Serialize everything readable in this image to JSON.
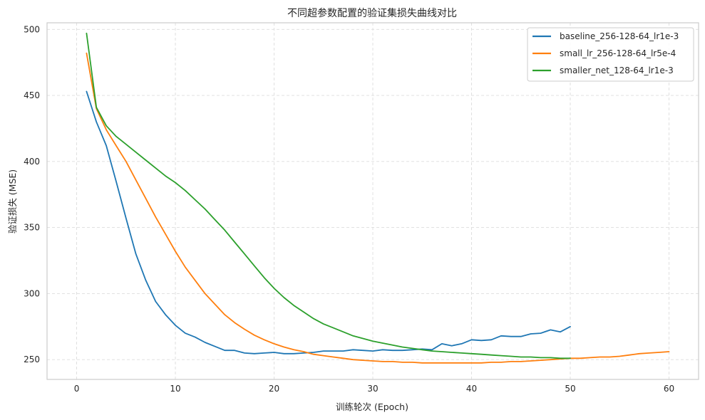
{
  "chart_data": {
    "type": "line",
    "title": "不同超参数配置的验证集损失曲线对比",
    "xlabel": "训练轮次 (Epoch)",
    "ylabel": "验证损失 (MSE)",
    "xlim": [
      -3,
      63
    ],
    "ylim": [
      235,
      505
    ],
    "xticks": [
      0,
      10,
      20,
      30,
      40,
      50,
      60
    ],
    "yticks": [
      250,
      300,
      350,
      400,
      450,
      500
    ],
    "grid": true,
    "grid_style": "dashed",
    "legend_position": "upper right",
    "series": [
      {
        "name": "baseline_256-128-64_lr1e-3",
        "color": "#1f77b4",
        "x_start": 1,
        "values": [
          453,
          430,
          412,
          385,
          357,
          330,
          310,
          294,
          284,
          276,
          270,
          267,
          263,
          260,
          257,
          257,
          255,
          254.5,
          255,
          255.5,
          254.5,
          254.5,
          255,
          255.5,
          256.5,
          256.5,
          256.5,
          257.5,
          257,
          256.5,
          257.5,
          257,
          257,
          257.5,
          258,
          257.5,
          262,
          260.5,
          262,
          265,
          264.5,
          265,
          268,
          267.5,
          267.5,
          269.5,
          270,
          272.5,
          271,
          275
        ]
      },
      {
        "name": "small_lr_256-128-64_lr5e-4",
        "color": "#ff7f0e",
        "x_start": 1,
        "values": [
          482,
          440,
          424,
          412,
          400,
          386,
          372,
          358,
          345,
          332,
          320,
          310,
          300,
          292,
          284,
          278,
          273,
          268.5,
          265,
          262,
          259.5,
          257.5,
          256,
          254,
          253,
          252,
          251,
          250,
          249.5,
          249,
          248.5,
          248.5,
          248,
          248,
          247.5,
          247.5,
          247.5,
          247.5,
          247.5,
          247.5,
          247.5,
          248,
          248,
          248.5,
          248.5,
          249,
          249.5,
          250,
          250.5,
          251,
          251,
          251.5,
          252,
          252,
          252.5,
          253.5,
          254.5,
          255,
          255.5,
          256
        ]
      },
      {
        "name": "smaller_net_128-64_lr1e-3",
        "color": "#2ca02c",
        "x_start": 1,
        "values": [
          497,
          441,
          427,
          419,
          413,
          407,
          401,
          395,
          389,
          384,
          378,
          371,
          364,
          356,
          348,
          339,
          330,
          321,
          312,
          304,
          297,
          291,
          286,
          281,
          277,
          274,
          271,
          268,
          266,
          264,
          262.5,
          261,
          259.5,
          258.5,
          257.5,
          256.5,
          256,
          255.5,
          255,
          254.5,
          254,
          253.5,
          253,
          252.5,
          252,
          252,
          251.5,
          251.5,
          251,
          251
        ]
      }
    ]
  },
  "style": {
    "frame_color": "#cccccc",
    "grid_color": "#dddddd",
    "legend_border": "#cccccc"
  }
}
